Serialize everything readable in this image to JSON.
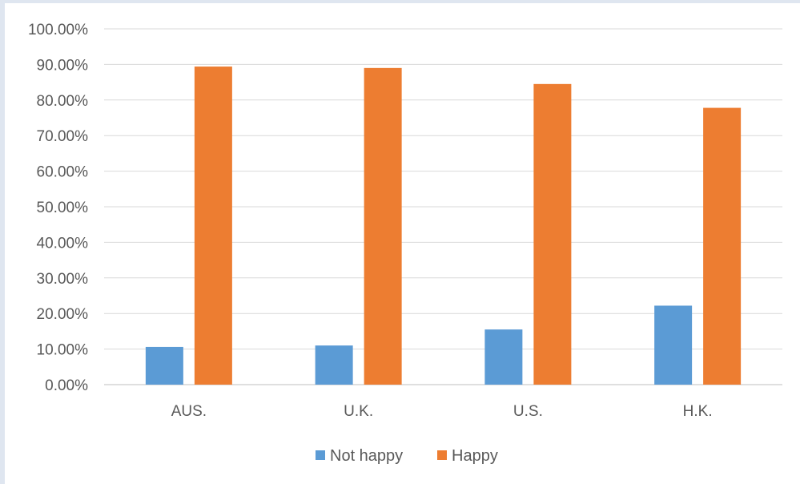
{
  "chart_data": {
    "type": "bar",
    "categories": [
      "AUS.",
      "U.K.",
      "U.S.",
      "H.K."
    ],
    "series": [
      {
        "name": "Not happy",
        "values": [
          10.6,
          11.0,
          15.5,
          22.2
        ]
      },
      {
        "name": "Happy",
        "values": [
          89.4,
          89.0,
          84.5,
          77.8
        ]
      }
    ],
    "ylim": [
      0,
      100
    ],
    "yticks": [
      "0.00%",
      "10.00%",
      "20.00%",
      "30.00%",
      "40.00%",
      "50.00%",
      "60.00%",
      "70.00%",
      "80.00%",
      "90.00%",
      "100.00%"
    ],
    "ytick_values": [
      0,
      10,
      20,
      30,
      40,
      50,
      60,
      70,
      80,
      90,
      100
    ],
    "grid": true,
    "legend_position": "bottom",
    "colors": {
      "Not happy": "#5b9bd5",
      "Happy": "#ed7d31",
      "grid": "#d9d9d9",
      "axis": "#bfbfbf",
      "text": "#595959"
    }
  }
}
